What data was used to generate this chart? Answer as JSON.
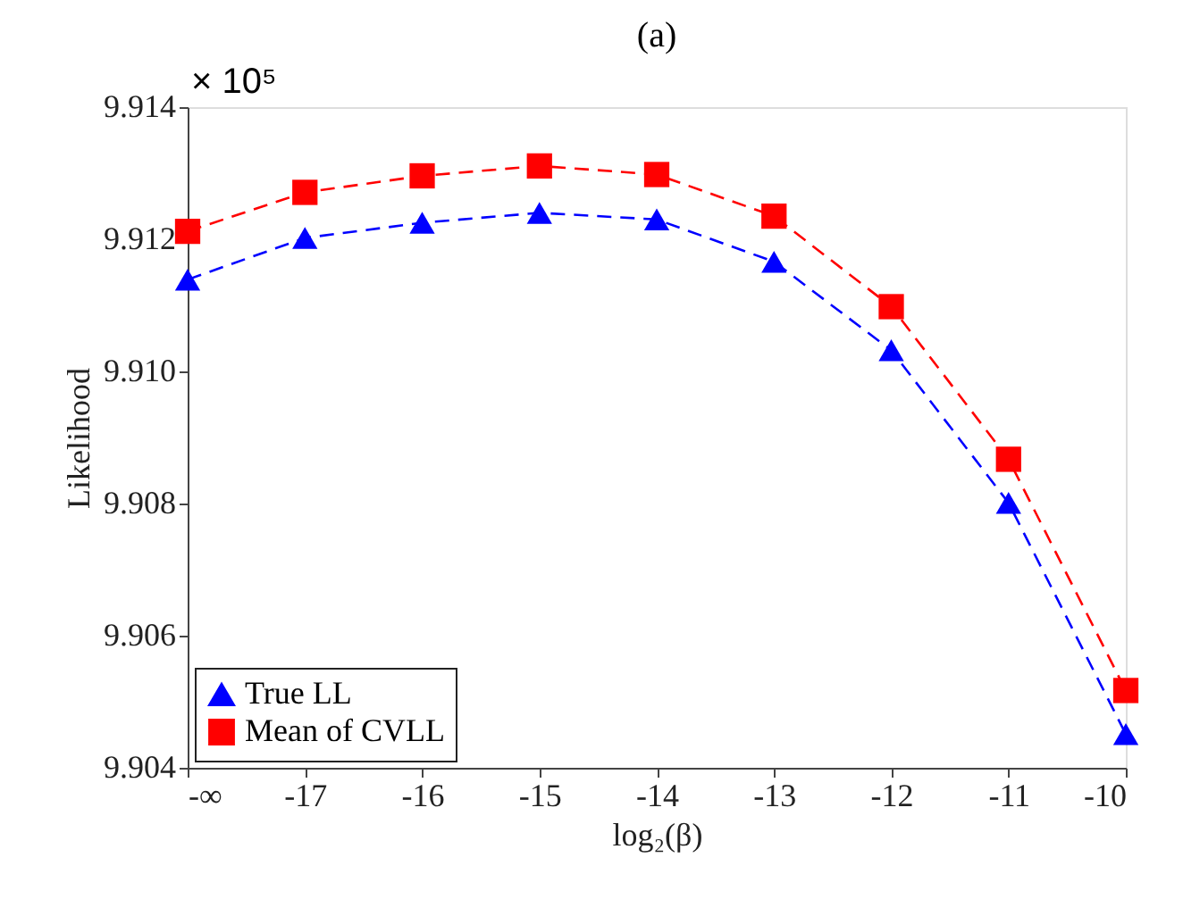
{
  "chart_data": {
    "type": "line",
    "title": "(a)",
    "xlabel": "log₂(β)",
    "ylabel": "Likelihood",
    "annotations": [
      "× 10⁵"
    ],
    "categories": [
      "-∞",
      "-17",
      "-16",
      "-15",
      "-14",
      "-13",
      "-12",
      "-11",
      "-10"
    ],
    "ylim": [
      9.904,
      9.914
    ],
    "yticks": [
      9.904,
      9.906,
      9.908,
      {
        "value": 9.91,
        "label": "9.910"
      },
      9.912,
      9.914
    ],
    "series": [
      {
        "name": "True LL",
        "color": "#0000ff",
        "marker": "triangle",
        "values": [
          9.91139,
          9.91202,
          9.91225,
          9.9124,
          9.9123,
          9.91166,
          9.91032,
          9.90801,
          9.90451
        ]
      },
      {
        "name": "Mean of CVLL",
        "color": "#ff0000",
        "marker": "square",
        "values": [
          9.91212,
          9.91271,
          9.91296,
          9.91311,
          9.91298,
          9.91235,
          9.91098,
          9.90867,
          9.90517
        ]
      }
    ],
    "line_style": "dashed",
    "legend": "bottom left",
    "grid": false
  }
}
